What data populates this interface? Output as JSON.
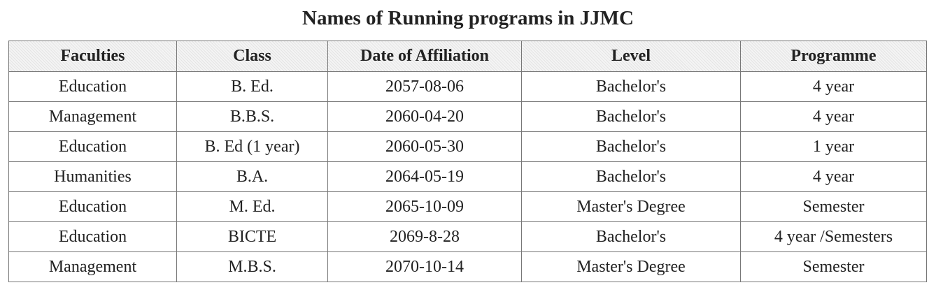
{
  "header": {
    "title": "Names of Running programs in JJMC"
  },
  "table": {
    "columns": [
      "Faculties",
      "Class",
      "Date of Affiliation",
      "Level",
      "Programme"
    ],
    "rows": [
      [
        "Education",
        "B. Ed.",
        "2057-08-06",
        "Bachelor's",
        "4 year"
      ],
      [
        "Management",
        "B.B.S.",
        "2060-04-20",
        "Bachelor's",
        "4 year"
      ],
      [
        "Education",
        "B. Ed (1 year)",
        "2060-05-30",
        "Bachelor's",
        "1 year"
      ],
      [
        "Humanities",
        "B.A.",
        "2064-05-19",
        "Bachelor's",
        "4 year"
      ],
      [
        "Education",
        "M. Ed.",
        "2065-10-09",
        "Master's Degree",
        "Semester"
      ],
      [
        "Education",
        "BICTE",
        "2069-8-28",
        "Bachelor's",
        "4 year /Semesters"
      ],
      [
        "Management",
        "M.B.S.",
        "2070-10-14",
        "Master's Degree",
        "Semester"
      ]
    ]
  }
}
